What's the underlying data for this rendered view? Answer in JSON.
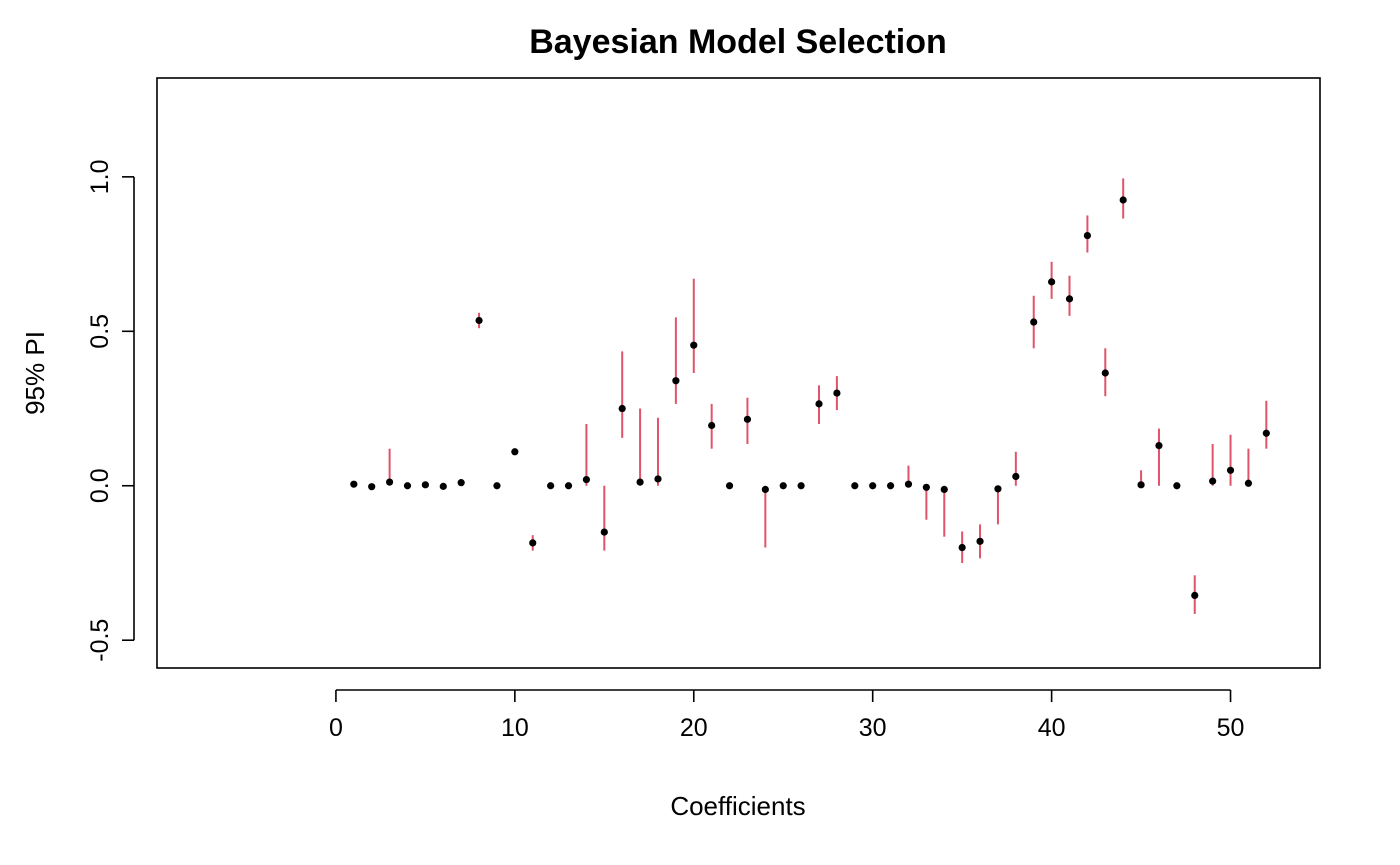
{
  "chart_data": {
    "type": "scatter",
    "title": "Bayesian Model Selection",
    "xlabel": "Coefficients",
    "ylabel": "95% PI",
    "xlim": [
      -10,
      55
    ],
    "ylim": [
      -0.59,
      1.32
    ],
    "xticks": [
      0,
      10,
      20,
      30,
      40,
      50
    ],
    "yticks": [
      -0.5,
      0.0,
      0.5,
      1.0
    ],
    "ytick_labels": [
      "-0.5",
      "0.0",
      "0.5",
      "1.0"
    ],
    "grid": false,
    "interval_color": "#DF536B",
    "point_color": "#000000",
    "series": [
      {
        "points": [
          {
            "x": 1,
            "y": 0.005,
            "lo": 0.005,
            "hi": 0.005
          },
          {
            "x": 2,
            "y": -0.003,
            "lo": -0.003,
            "hi": -0.003
          },
          {
            "x": 3,
            "y": 0.012,
            "lo": 0.0,
            "hi": 0.12
          },
          {
            "x": 4,
            "y": 0.0,
            "lo": 0.0,
            "hi": 0.0
          },
          {
            "x": 5,
            "y": 0.003,
            "lo": 0.003,
            "hi": 0.003
          },
          {
            "x": 6,
            "y": -0.002,
            "lo": -0.002,
            "hi": -0.002
          },
          {
            "x": 7,
            "y": 0.01,
            "lo": 0.01,
            "hi": 0.01
          },
          {
            "x": 8,
            "y": 0.535,
            "lo": 0.51,
            "hi": 0.56
          },
          {
            "x": 9,
            "y": 0.0,
            "lo": 0.0,
            "hi": 0.0
          },
          {
            "x": 10,
            "y": 0.11,
            "lo": 0.11,
            "hi": 0.11
          },
          {
            "x": 11,
            "y": -0.185,
            "lo": -0.21,
            "hi": -0.16
          },
          {
            "x": 12,
            "y": 0.0,
            "lo": 0.0,
            "hi": 0.0
          },
          {
            "x": 13,
            "y": 0.0,
            "lo": 0.0,
            "hi": 0.0
          },
          {
            "x": 14,
            "y": 0.02,
            "lo": 0.0,
            "hi": 0.2
          },
          {
            "x": 15,
            "y": -0.15,
            "lo": -0.21,
            "hi": 0.0
          },
          {
            "x": 16,
            "y": 0.25,
            "lo": 0.155,
            "hi": 0.435
          },
          {
            "x": 17,
            "y": 0.012,
            "lo": 0.0,
            "hi": 0.25
          },
          {
            "x": 18,
            "y": 0.022,
            "lo": 0.0,
            "hi": 0.22
          },
          {
            "x": 19,
            "y": 0.34,
            "lo": 0.265,
            "hi": 0.545
          },
          {
            "x": 20,
            "y": 0.455,
            "lo": 0.365,
            "hi": 0.67
          },
          {
            "x": 21,
            "y": 0.195,
            "lo": 0.12,
            "hi": 0.265
          },
          {
            "x": 22,
            "y": 0.0,
            "lo": 0.0,
            "hi": 0.0
          },
          {
            "x": 23,
            "y": 0.215,
            "lo": 0.135,
            "hi": 0.285
          },
          {
            "x": 24,
            "y": -0.012,
            "lo": -0.2,
            "hi": 0.0
          },
          {
            "x": 25,
            "y": 0.0,
            "lo": 0.0,
            "hi": 0.0
          },
          {
            "x": 26,
            "y": 0.0,
            "lo": 0.0,
            "hi": 0.0
          },
          {
            "x": 27,
            "y": 0.265,
            "lo": 0.2,
            "hi": 0.325
          },
          {
            "x": 28,
            "y": 0.3,
            "lo": 0.245,
            "hi": 0.355
          },
          {
            "x": 29,
            "y": 0.0,
            "lo": 0.0,
            "hi": 0.0
          },
          {
            "x": 30,
            "y": 0.0,
            "lo": 0.0,
            "hi": 0.0
          },
          {
            "x": 31,
            "y": 0.0,
            "lo": 0.0,
            "hi": 0.0
          },
          {
            "x": 32,
            "y": 0.005,
            "lo": 0.0,
            "hi": 0.065
          },
          {
            "x": 33,
            "y": -0.005,
            "lo": -0.11,
            "hi": 0.0
          },
          {
            "x": 34,
            "y": -0.012,
            "lo": -0.165,
            "hi": 0.0
          },
          {
            "x": 35,
            "y": -0.2,
            "lo": -0.25,
            "hi": -0.148
          },
          {
            "x": 36,
            "y": -0.18,
            "lo": -0.235,
            "hi": -0.125
          },
          {
            "x": 37,
            "y": -0.01,
            "lo": -0.125,
            "hi": 0.0
          },
          {
            "x": 38,
            "y": 0.03,
            "lo": 0.0,
            "hi": 0.11
          },
          {
            "x": 39,
            "y": 0.53,
            "lo": 0.445,
            "hi": 0.615
          },
          {
            "x": 40,
            "y": 0.66,
            "lo": 0.605,
            "hi": 0.725
          },
          {
            "x": 41,
            "y": 0.605,
            "lo": 0.55,
            "hi": 0.68
          },
          {
            "x": 42,
            "y": 0.81,
            "lo": 0.755,
            "hi": 0.875
          },
          {
            "x": 43,
            "y": 0.365,
            "lo": 0.29,
            "hi": 0.445
          },
          {
            "x": 44,
            "y": 0.925,
            "lo": 0.865,
            "hi": 0.995
          },
          {
            "x": 45,
            "y": 0.003,
            "lo": 0.0,
            "hi": 0.05
          },
          {
            "x": 46,
            "y": 0.13,
            "lo": 0.0,
            "hi": 0.185
          },
          {
            "x": 47,
            "y": 0.0,
            "lo": 0.0,
            "hi": 0.0
          },
          {
            "x": 48,
            "y": -0.355,
            "lo": -0.415,
            "hi": -0.29
          },
          {
            "x": 49,
            "y": 0.015,
            "lo": 0.0,
            "hi": 0.135
          },
          {
            "x": 50,
            "y": 0.05,
            "lo": 0.0,
            "hi": 0.165
          },
          {
            "x": 51,
            "y": 0.008,
            "lo": 0.0,
            "hi": 0.12
          },
          {
            "x": 52,
            "y": 0.17,
            "lo": 0.12,
            "hi": 0.275
          }
        ]
      }
    ]
  }
}
